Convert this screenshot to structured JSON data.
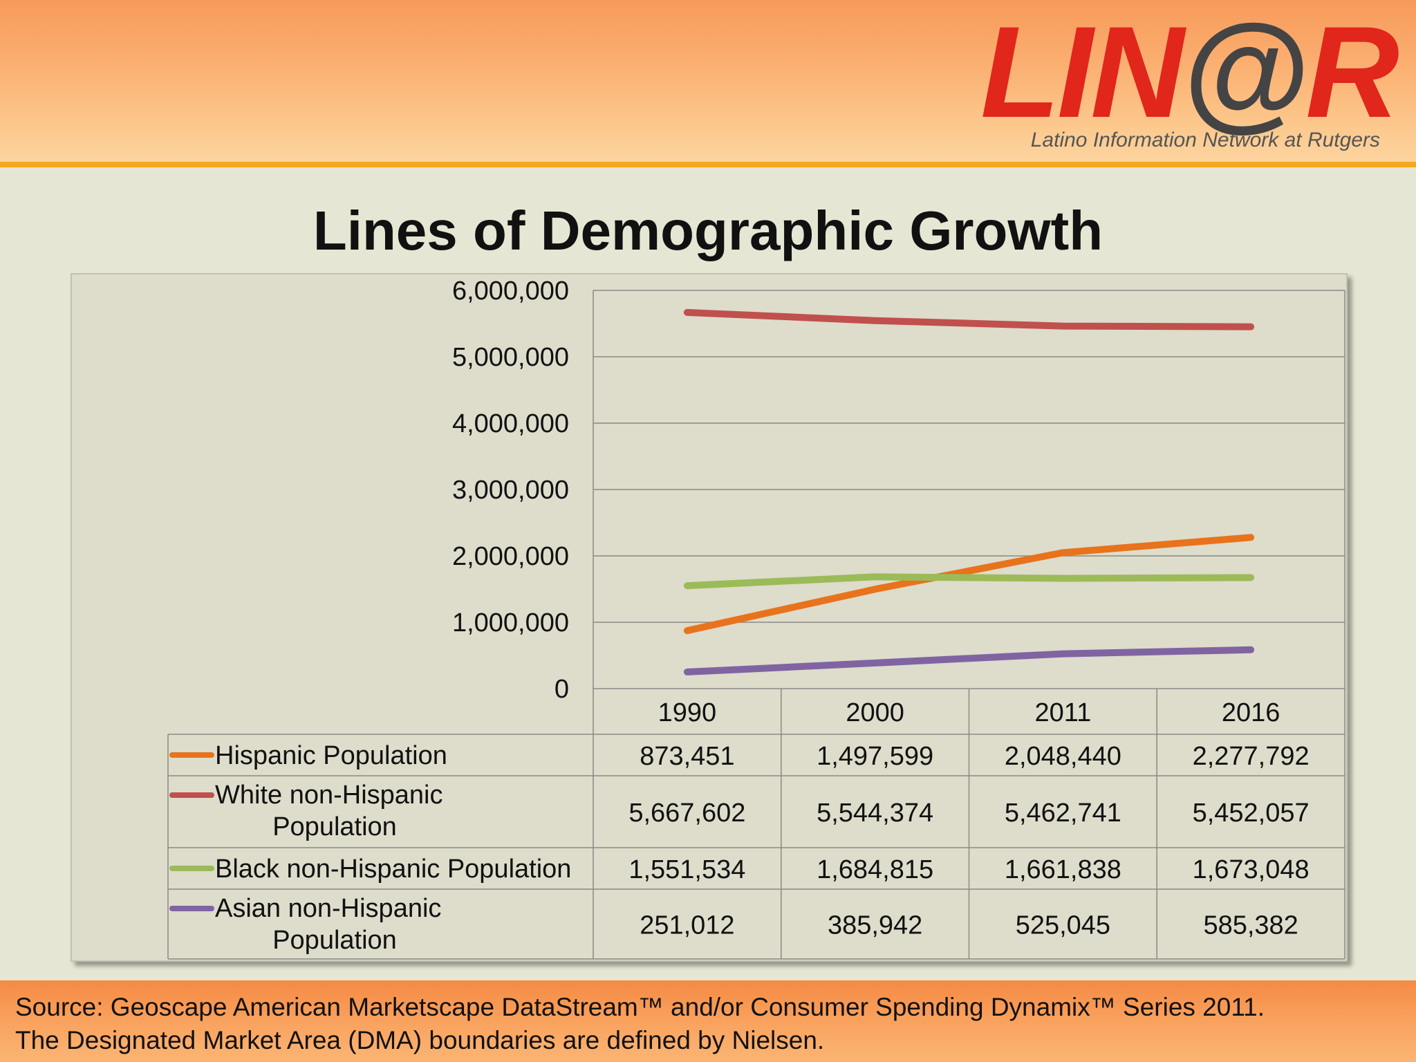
{
  "logo": {
    "brand": "LIN@R",
    "tagline": "Latino Information Network at Rutgers"
  },
  "title": "Lines of Demographic Growth",
  "footer": {
    "line1": "Source: Geoscape American Marketscape DataStream™ and/or Consumer Spending Dynamix™ Series 2011.",
    "line2": "The Designated Market Area (DMA) boundaries are defined by Nielsen."
  },
  "chart_data": {
    "type": "line",
    "title": "",
    "x": [
      "1990",
      "2000",
      "2011",
      "2016"
    ],
    "ylim": [
      0,
      6000000
    ],
    "y_ticks": [
      "0",
      "1,000,000",
      "2,000,000",
      "3,000,000",
      "4,000,000",
      "5,000,000",
      "6,000,000"
    ],
    "grid": true,
    "legend": "data-table-below",
    "series": [
      {
        "name": "Hispanic Population",
        "color": "#e8731c",
        "values": [
          873451,
          1497599,
          2048440,
          2277792
        ],
        "labels": [
          "873,451",
          "1,497,599",
          "2,048,440",
          "2,277,792"
        ]
      },
      {
        "name": "White non-Hispanic Population",
        "color": "#c0504d",
        "values": [
          5667602,
          5544374,
          5462741,
          5452057
        ],
        "labels": [
          "5,667,602",
          "5,544,374",
          "5,462,741",
          "5,452,057"
        ]
      },
      {
        "name": "Black non-Hispanic Population",
        "color": "#9bbb59",
        "values": [
          1551534,
          1684815,
          1661838,
          1673048
        ],
        "labels": [
          "1,551,534",
          "1,684,815",
          "1,661,838",
          "1,673,048"
        ]
      },
      {
        "name": "Asian non-Hispanic Population",
        "color": "#8064a2",
        "values": [
          251012,
          385942,
          525045,
          585382
        ],
        "labels": [
          "251,012",
          "385,942",
          "525,045",
          "585,382"
        ]
      }
    ]
  }
}
